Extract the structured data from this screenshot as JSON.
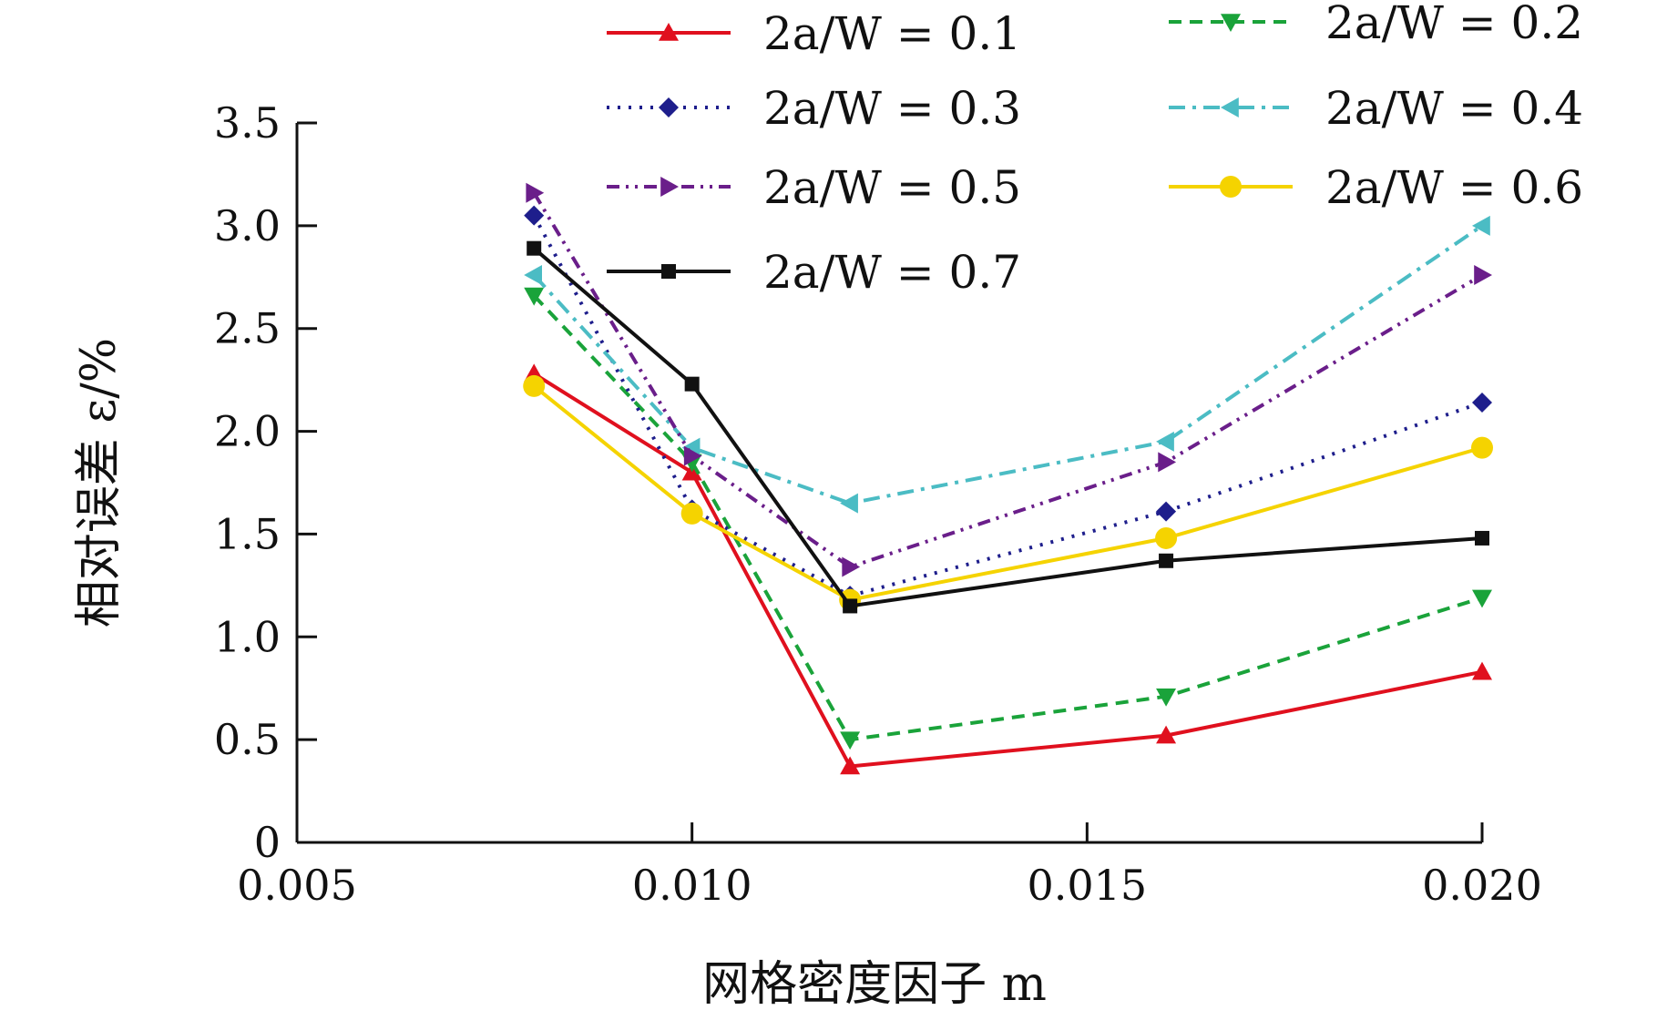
{
  "chart_data": {
    "type": "line",
    "xlabel": "网格密度因子 m",
    "ylabel": "相对误差 ε/%",
    "xlim": [
      0.005,
      0.02
    ],
    "ylim": [
      0,
      3.5
    ],
    "x_ticks": [
      "0.005",
      "0.010",
      "0.015",
      "0.020"
    ],
    "y_ticks": [
      "0",
      "0.5",
      "1.0",
      "1.5",
      "2.0",
      "2.5",
      "3.0",
      "3.5"
    ],
    "x": [
      0.008,
      0.01,
      0.012,
      0.016,
      0.02
    ],
    "series": [
      {
        "name": "2a/W = 0.1",
        "values": [
          2.28,
          1.8,
          0.37,
          0.52,
          0.83
        ],
        "color": "#e0101e",
        "marker": "triangle-up",
        "dash": "solid"
      },
      {
        "name": "2a/W = 0.2",
        "values": [
          2.66,
          1.85,
          0.5,
          0.71,
          1.19
        ],
        "color": "#1aa33a",
        "marker": "triangle-down",
        "dash": "dashed"
      },
      {
        "name": "2a/W = 0.3",
        "values": [
          3.05,
          1.62,
          1.2,
          1.61,
          2.14
        ],
        "color": "#1e1e8c",
        "marker": "diamond",
        "dash": "dotted"
      },
      {
        "name": "2a/W = 0.4",
        "values": [
          2.76,
          1.92,
          1.65,
          1.95,
          3.0
        ],
        "color": "#4bbcc4",
        "marker": "triangle-left",
        "dash": "dashdot"
      },
      {
        "name": "2a/W = 0.5",
        "values": [
          3.16,
          1.88,
          1.34,
          1.85,
          2.76
        ],
        "color": "#6a1e8a",
        "marker": "triangle-right",
        "dash": "dashdotdot"
      },
      {
        "name": "2a/W = 0.6",
        "values": [
          2.22,
          1.6,
          1.18,
          1.48,
          1.92
        ],
        "color": "#f5d300",
        "marker": "circle",
        "dash": "solid"
      },
      {
        "name": "2a/W = 0.7",
        "values": [
          2.89,
          2.23,
          1.15,
          1.37,
          1.48
        ],
        "color": "#111111",
        "marker": "square",
        "dash": "solid"
      }
    ],
    "legend": "top, two columns",
    "grid": false
  }
}
